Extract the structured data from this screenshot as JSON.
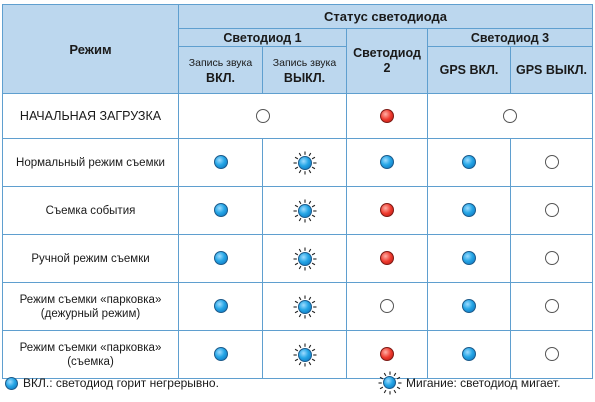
{
  "header": {
    "mode": "Режим",
    "status": "Статус светодиода",
    "led1": "Светодиод 1",
    "led1_rec_on_line1": "Запись звука",
    "led1_rec_on_line2": "ВКЛ.",
    "led1_rec_off_line1": "Запись звука",
    "led1_rec_off_line2": "ВЫКЛ.",
    "led2_line1": "Светодиод",
    "led2_line2": "2",
    "led3": "Светодиод 3",
    "gps_on": "GPS ВКЛ.",
    "gps_off": "GPS ВЫКЛ."
  },
  "rows": [
    {
      "mode": "НАЧАЛЬНАЯ ЗАГРУЗКА",
      "led1": "off",
      "led2": "red",
      "led3": "off"
    },
    {
      "mode": "Нормальный режим съемки",
      "led1_rec_on": "blue",
      "led1_rec_off": "blink",
      "led2": "blue",
      "gps_on": "blue",
      "gps_off": "off"
    },
    {
      "mode": "Съемка события",
      "led1_rec_on": "blue",
      "led1_rec_off": "blink",
      "led2": "red",
      "gps_on": "blue",
      "gps_off": "off"
    },
    {
      "mode": "Ручной режим съемки",
      "led1_rec_on": "blue",
      "led1_rec_off": "blink",
      "led2": "red",
      "gps_on": "blue",
      "gps_off": "off"
    },
    {
      "mode_line1": "Режим съемки «парковка»",
      "mode_line2": "(дежурный режим)",
      "led1_rec_on": "blue",
      "led1_rec_off": "blink",
      "led2": "off",
      "gps_on": "blue",
      "gps_off": "off"
    },
    {
      "mode_line1": "Режим съемки «парковка»",
      "mode_line2": "(съемка)",
      "led1_rec_on": "blue",
      "led1_rec_off": "blink",
      "led2": "red",
      "gps_on": "blue",
      "gps_off": "off"
    }
  ],
  "legend": {
    "solid": "ВКЛ.: светодиод горит негрерывно.",
    "blink": "Мигание: светодиод мигает."
  },
  "colors": {
    "header_bg": "#bcd7ee",
    "grid": "#5f9fcf",
    "led_blue": "#26a6e6",
    "led_red": "#ee3a2e"
  }
}
